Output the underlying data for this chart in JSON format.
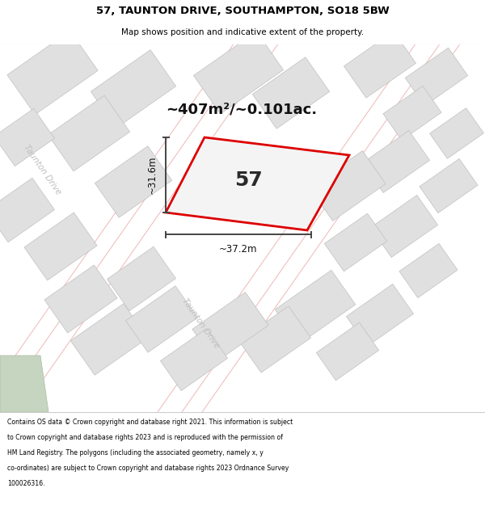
{
  "title_line1": "57, TAUNTON DRIVE, SOUTHAMPTON, SO18 5BW",
  "title_line2": "Map shows position and indicative extent of the property.",
  "footer_lines": [
    "Contains OS data © Crown copyright and database right 2021. This information is subject",
    "to Crown copyright and database rights 2023 and is reproduced with the permission of",
    "HM Land Registry. The polygons (including the associated geometry, namely x, y",
    "co-ordinates) are subject to Crown copyright and database rights 2023 Ordnance Survey",
    "100026316."
  ],
  "area_label": "~407m²/~0.101ac.",
  "number_label": "57",
  "dim_width": "~37.2m",
  "dim_height": "~31.6m",
  "road_label1": "Taunton Drive",
  "road_label2": "Taunton Drive",
  "bg_color": "#ffffff",
  "map_bg": "#f8f8f7",
  "plot_outline_color": "#dd0000",
  "plot_fill_color": "#f0f0f0",
  "building_fill": "#e0e0e0",
  "building_outline": "#c0c0c0",
  "road_line_color": "#f0c0c0",
  "road_label_color": "#c0bebe",
  "dim_line_color": "#444444",
  "title_color": "#000000",
  "footer_color": "#000000",
  "divider_color": "#cccccc"
}
